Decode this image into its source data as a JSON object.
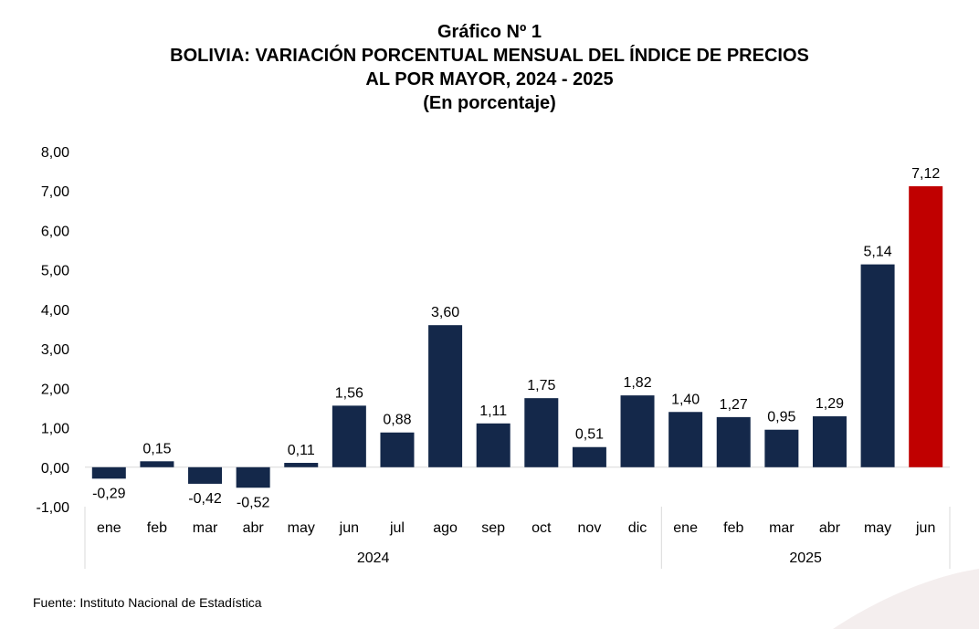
{
  "chart_data": {
    "type": "bar",
    "title_lines": [
      "Gráfico Nº 1",
      "BOLIVIA: VARIACIÓN PORCENTUAL MENSUAL DEL ÍNDICE DE PRECIOS",
      "AL POR MAYOR, 2024 - 2025",
      "(En porcentaje)"
    ],
    "ylim": [
      -1,
      8
    ],
    "y_ticks": [
      "-1,00",
      "0,00",
      "1,00",
      "2,00",
      "3,00",
      "4,00",
      "5,00",
      "6,00",
      "7,00",
      "8,00"
    ],
    "categories": [
      "ene",
      "feb",
      "mar",
      "abr",
      "may",
      "jun",
      "jul",
      "ago",
      "sep",
      "oct",
      "nov",
      "dic",
      "ene",
      "feb",
      "mar",
      "abr",
      "may",
      "jun"
    ],
    "year_groups": [
      {
        "label": "2024",
        "count": 12
      },
      {
        "label": "2025",
        "count": 6
      }
    ],
    "values": [
      -0.29,
      0.15,
      -0.42,
      -0.52,
      0.11,
      1.56,
      0.88,
      3.6,
      1.11,
      1.75,
      0.51,
      1.82,
      1.4,
      1.27,
      0.95,
      1.29,
      5.14,
      7.12
    ],
    "value_labels": [
      "-0,29",
      "0,15",
      "-0,42",
      "-0,52",
      "0,11",
      "1,56",
      "0,88",
      "3,60",
      "1,11",
      "1,75",
      "0,51",
      "1,82",
      "1,40",
      "1,27",
      "0,95",
      "1,29",
      "5,14",
      "7,12"
    ],
    "colors": {
      "default": "#14284a",
      "highlight": "#c00000"
    },
    "highlight_index": 17,
    "grid": false,
    "legend": "none"
  },
  "source_text": "Fuente: Instituto Nacional de Estadística"
}
